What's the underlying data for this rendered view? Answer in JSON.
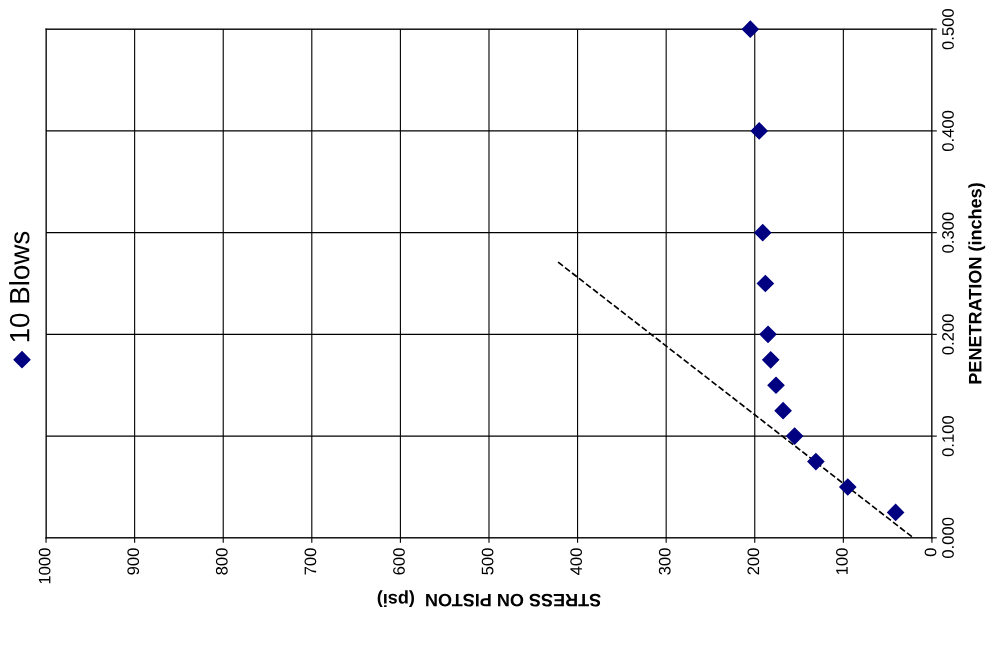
{
  "chart_data": {
    "type": "scatter",
    "xlabel": "STRESS ON PISTON  (psi)",
    "ylabel": "PENETRATION (inches)",
    "xlim": [
      1000,
      0
    ],
    "xticks": [
      0,
      100,
      200,
      300,
      400,
      500,
      600,
      700,
      800,
      900,
      1000
    ],
    "ylim": [
      0,
      0.5
    ],
    "yticks": [
      {
        "value": 0,
        "label": "0.000"
      },
      {
        "value": 0.1,
        "label": "0.100"
      },
      {
        "value": 0.2,
        "label": "0.200"
      },
      {
        "value": 0.3,
        "label": "0.300"
      },
      {
        "value": 0.4,
        "label": "0.400"
      },
      {
        "value": 0.5,
        "label": "0.500"
      }
    ],
    "grid": true,
    "legend": "left",
    "series": [
      {
        "name": "10 Blows",
        "color": "#000080",
        "marker": "diamond",
        "x": [
          205,
          195,
          191,
          188,
          185,
          182,
          176,
          168,
          155,
          131,
          95,
          41
        ],
        "values": [
          0.5,
          0.4,
          0.3,
          0.25,
          0.2,
          0.175,
          0.15,
          0.125,
          0.1,
          0.075,
          0.05,
          0.025
        ]
      },
      {
        "type": "line",
        "color": "#000000",
        "line_style": "dashed",
        "x": [
          422,
          21
        ],
        "values": [
          0.271,
          0
        ]
      }
    ]
  }
}
